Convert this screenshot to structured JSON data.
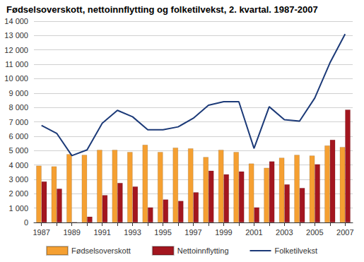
{
  "chart_data": {
    "type": "bar",
    "title": "Fødselsoverskott, nettoinnflytting og folketilvekst, 2. kvartal. 1987-2007",
    "categories": [
      "1987",
      null,
      "1989",
      null,
      "1991",
      null,
      "1993",
      null,
      "1995",
      null,
      "1997",
      null,
      "1999",
      null,
      "2001",
      null,
      "2003",
      null,
      "2005",
      null,
      "2007"
    ],
    "series": [
      {
        "name": "Fødselsoverskott",
        "type": "bar",
        "color": "#f5a032",
        "values": [
          3950,
          3900,
          4750,
          4700,
          5050,
          5050,
          4900,
          5400,
          4900,
          5200,
          5150,
          4550,
          5050,
          4900,
          4100,
          3800,
          4500,
          4700,
          4650,
          5350,
          5250
        ]
      },
      {
        "name": "Nettoinnflytting",
        "type": "bar",
        "color": "#a3161f",
        "values": [
          2850,
          2350,
          30,
          400,
          1900,
          2750,
          2500,
          1050,
          1600,
          1500,
          2100,
          3600,
          3350,
          3550,
          1050,
          4250,
          2650,
          2400,
          4050,
          5750,
          7850
        ]
      },
      {
        "name": "Folketilvekst",
        "type": "line",
        "color": "#1c3a78",
        "values": [
          6750,
          6200,
          4650,
          5050,
          6900,
          7800,
          7350,
          6450,
          6450,
          6650,
          7250,
          8150,
          8400,
          8400,
          5150,
          8050,
          7150,
          7050,
          8650,
          11100,
          13100
        ]
      }
    ],
    "ylim": [
      0,
      14000
    ],
    "yticks": [
      0,
      {
        "value": 1000,
        "label": "1 000"
      },
      {
        "value": 2000,
        "label": "2 000"
      },
      {
        "value": 3000,
        "label": "3 000"
      },
      {
        "value": 4000,
        "label": "4 000"
      },
      {
        "value": 5000,
        "label": "5 000"
      },
      {
        "value": 6000,
        "label": "6 000"
      },
      {
        "value": 7000,
        "label": "7 000"
      },
      {
        "value": 8000,
        "label": "8 000"
      },
      {
        "value": 9000,
        "label": "9 000"
      },
      {
        "value": 10000,
        "label": "10 000"
      },
      {
        "value": 11000,
        "label": "11 000"
      },
      {
        "value": 12000,
        "label": "12 000"
      },
      {
        "value": 13000,
        "label": "13 000"
      },
      {
        "value": 14000,
        "label": "14 000"
      }
    ],
    "grid": true,
    "legend": "bottom"
  }
}
